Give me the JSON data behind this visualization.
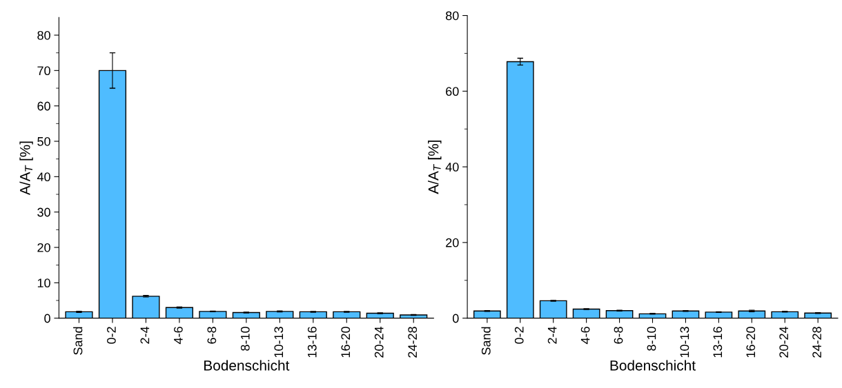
{
  "chart_data": [
    {
      "type": "bar",
      "xlabel": "Bodenschicht",
      "ylabel": "A/A$_{T}$ [%]",
      "categories": [
        "Sand",
        "0-2",
        "2-4",
        "4-6",
        "6-8",
        "8-10",
        "10-13",
        "13-16",
        "16-20",
        "20-24",
        "24-28"
      ],
      "values": [
        1.8,
        70,
        6.2,
        3.0,
        1.9,
        1.6,
        1.9,
        1.8,
        1.8,
        1.4,
        0.9
      ],
      "errors": [
        0.15,
        5,
        0.2,
        0.15,
        0.1,
        0.1,
        0.15,
        0.1,
        0.1,
        0.1,
        0.1
      ],
      "color": "#4fbcff",
      "ylim": [
        0,
        85
      ],
      "yticks": [
        0,
        10,
        20,
        30,
        40,
        50,
        60,
        70,
        80
      ],
      "grid": false,
      "legend": false
    },
    {
      "type": "bar",
      "xlabel": "Bodenschicht",
      "ylabel": "A/A$_{T}$ [%]",
      "categories": [
        "Sand",
        "0-2",
        "2-4",
        "4-6",
        "6-8",
        "8-10",
        "10-13",
        "13-16",
        "16-20",
        "20-24",
        "24-28"
      ],
      "values": [
        1.9,
        67.8,
        4.6,
        2.4,
        2.0,
        1.15,
        1.9,
        1.6,
        1.9,
        1.7,
        1.35
      ],
      "errors": [
        0.1,
        0.9,
        0.1,
        0.1,
        0.1,
        0.1,
        0.1,
        0.1,
        0.2,
        0.1,
        0.1
      ],
      "color": "#4fbcff",
      "ylim": [
        0,
        80
      ],
      "yticks": [
        0,
        20,
        40,
        60,
        80
      ],
      "grid": false,
      "legend": false
    }
  ]
}
